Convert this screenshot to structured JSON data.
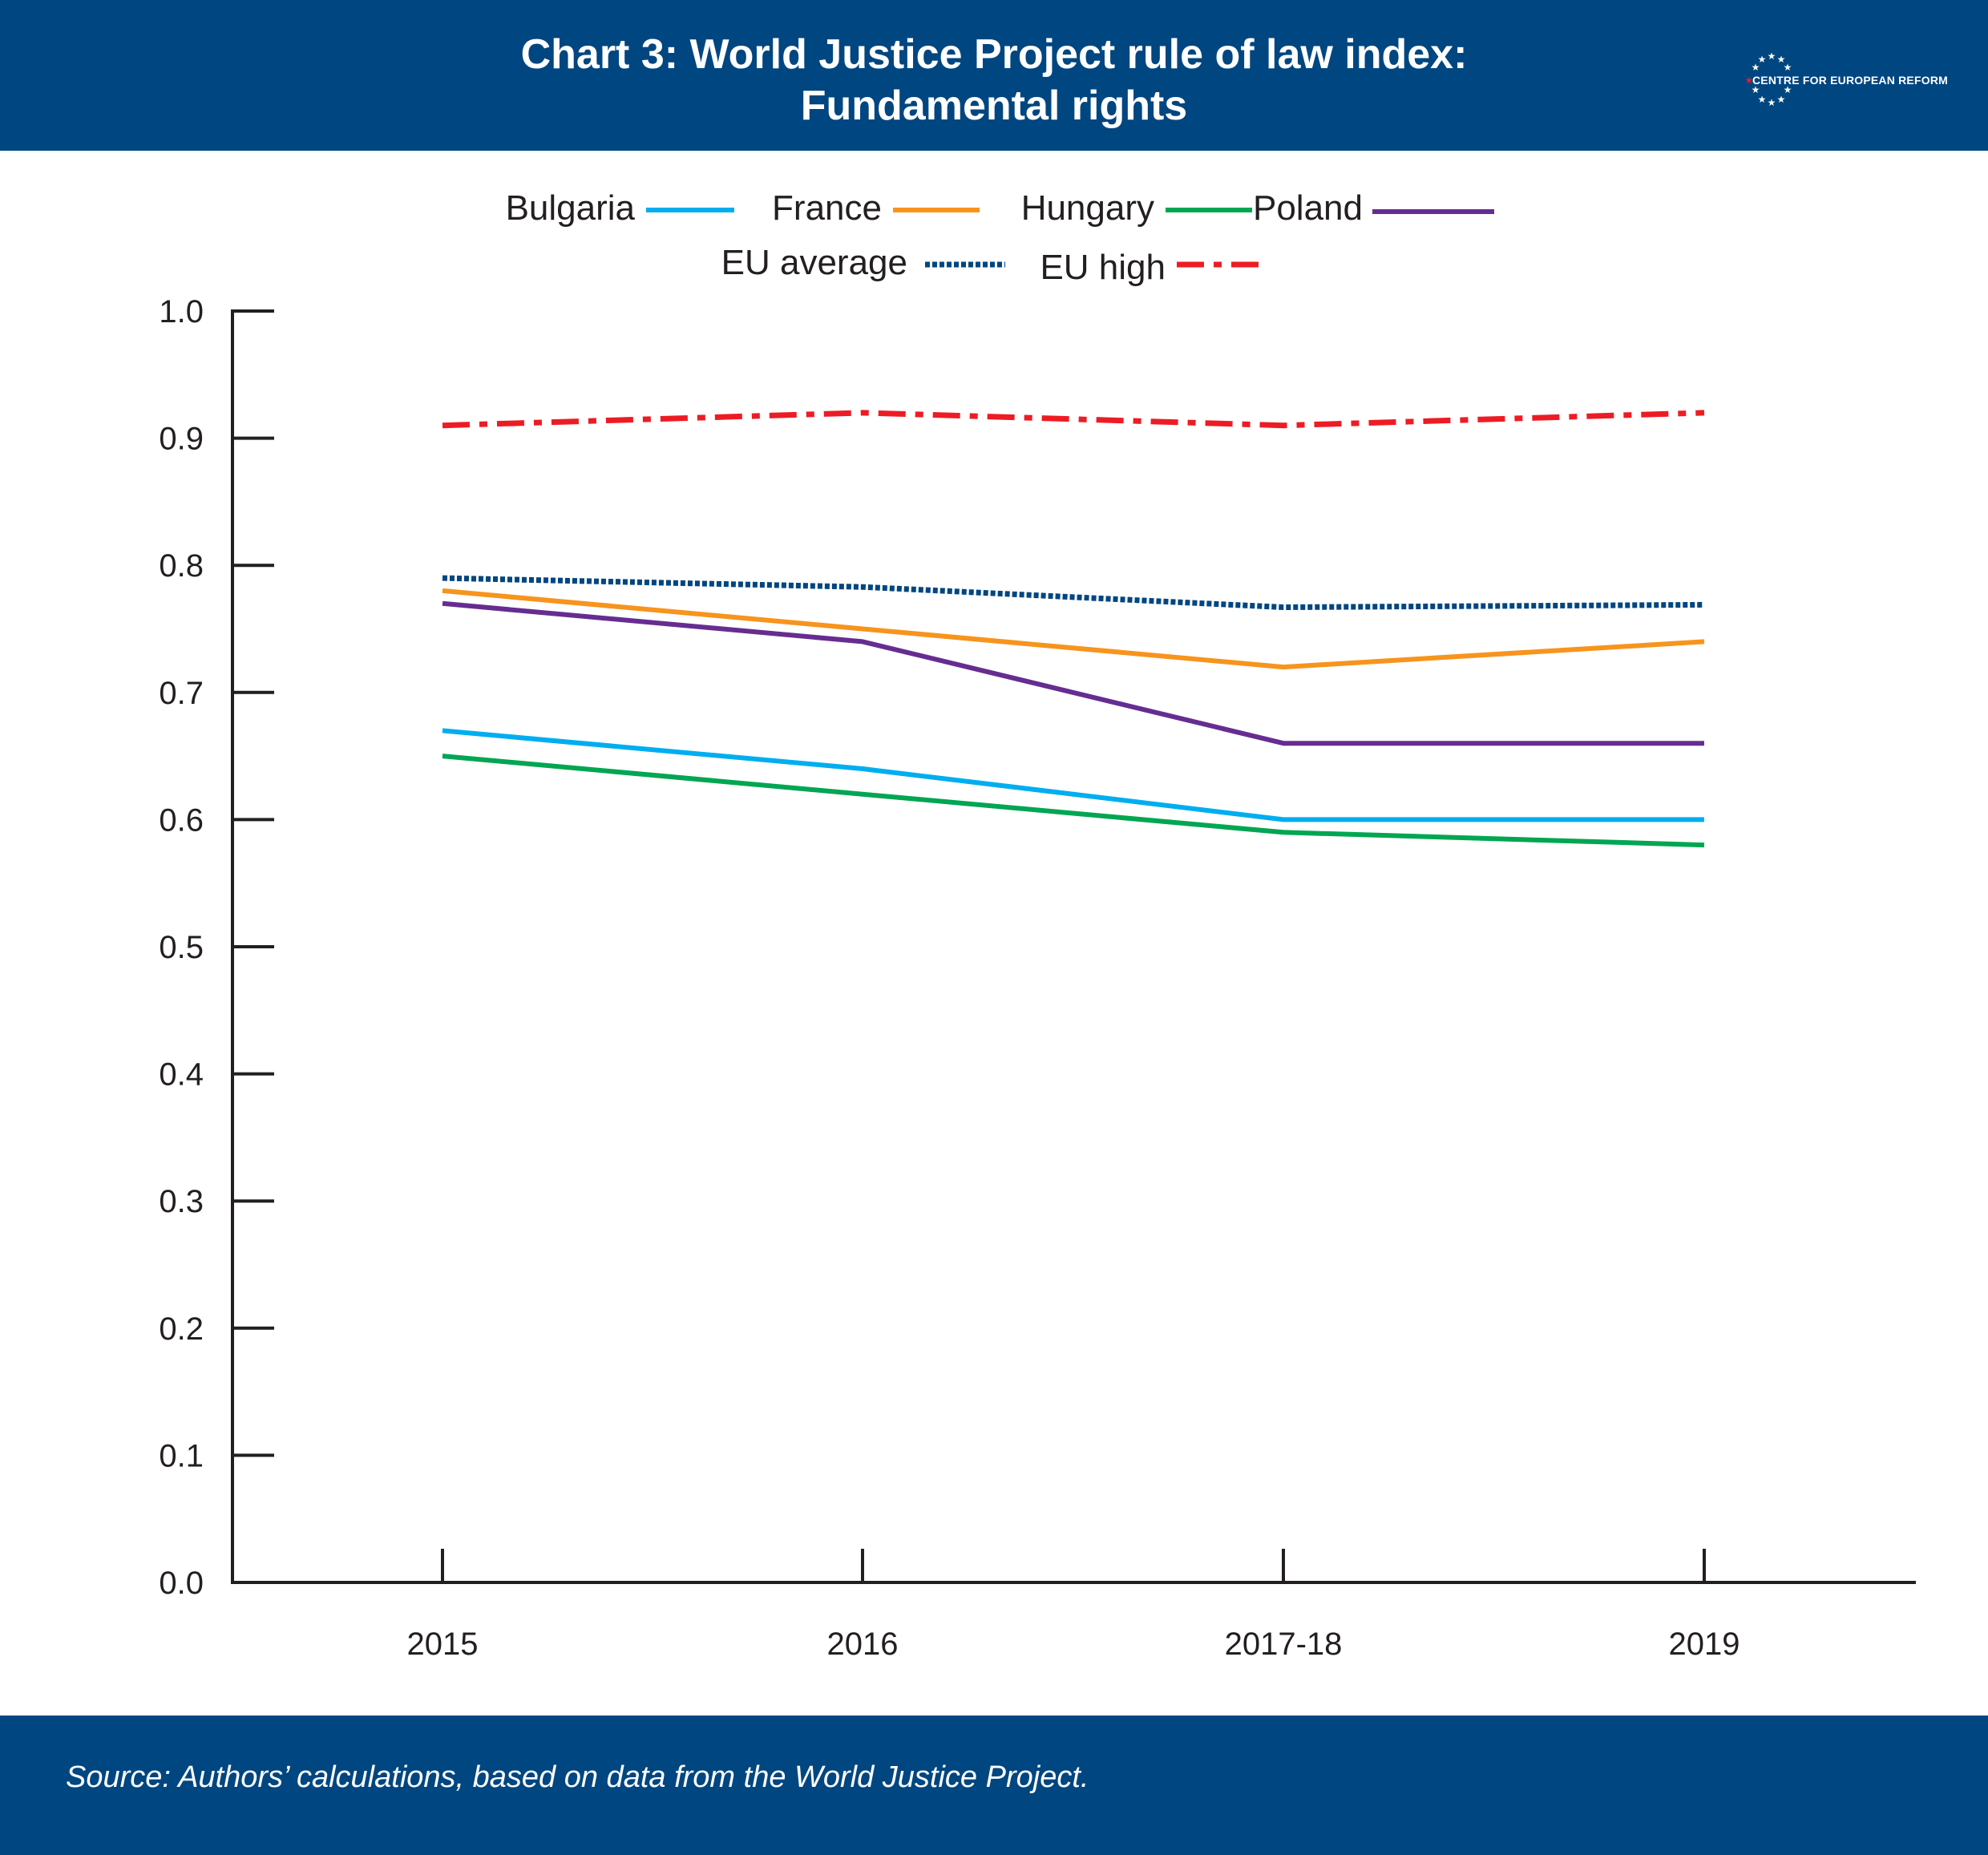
{
  "header": {
    "title_line1": "Chart 3: World Justice Project rule of law index:",
    "title_line2": "Fundamental rights",
    "logo_text": "CENTRE FOR EUROPEAN REFORM"
  },
  "footer": {
    "source": "Source: Authors’ calculations, based on data from the World Justice Project."
  },
  "colors": {
    "header_bg": "#004680",
    "Bulgaria": "#00aeef",
    "France": "#f7941d",
    "Hungary": "#00a651",
    "Poland": "#662d91",
    "EU average": "#004680",
    "EU high": "#ed1c24"
  },
  "chart_data": {
    "type": "line",
    "title": "Chart 3: World Justice Project rule of law index: Fundamental rights",
    "xlabel": "",
    "ylabel": "",
    "categories": [
      "2015",
      "2016",
      "2017-18",
      "2019"
    ],
    "ylim": [
      0,
      1
    ],
    "yticks": [
      "0.0",
      "0.1",
      "0.2",
      "0.3",
      "0.4",
      "0.5",
      "0.6",
      "0.7",
      "0.8",
      "0.9",
      "1.0"
    ],
    "grid": false,
    "legend_position": "top-center",
    "series": [
      {
        "name": "Bulgaria",
        "values": [
          0.67,
          0.64,
          0.6,
          0.6
        ],
        "style": "solid",
        "color": "#00aeef"
      },
      {
        "name": "France",
        "values": [
          0.78,
          0.75,
          0.72,
          0.74
        ],
        "style": "solid",
        "color": "#f7941d"
      },
      {
        "name": "Hungary",
        "values": [
          0.65,
          0.62,
          0.59,
          0.58
        ],
        "style": "solid",
        "color": "#00a651"
      },
      {
        "name": "Poland",
        "values": [
          0.77,
          0.74,
          0.66,
          0.66
        ],
        "style": "solid",
        "color": "#662d91"
      },
      {
        "name": "EU average",
        "values": [
          0.79,
          0.783,
          0.767,
          0.769
        ],
        "style": "dotted",
        "color": "#004680"
      },
      {
        "name": "EU high",
        "values": [
          0.91,
          0.92,
          0.91,
          0.92
        ],
        "style": "dashdot",
        "color": "#ed1c24"
      }
    ]
  }
}
